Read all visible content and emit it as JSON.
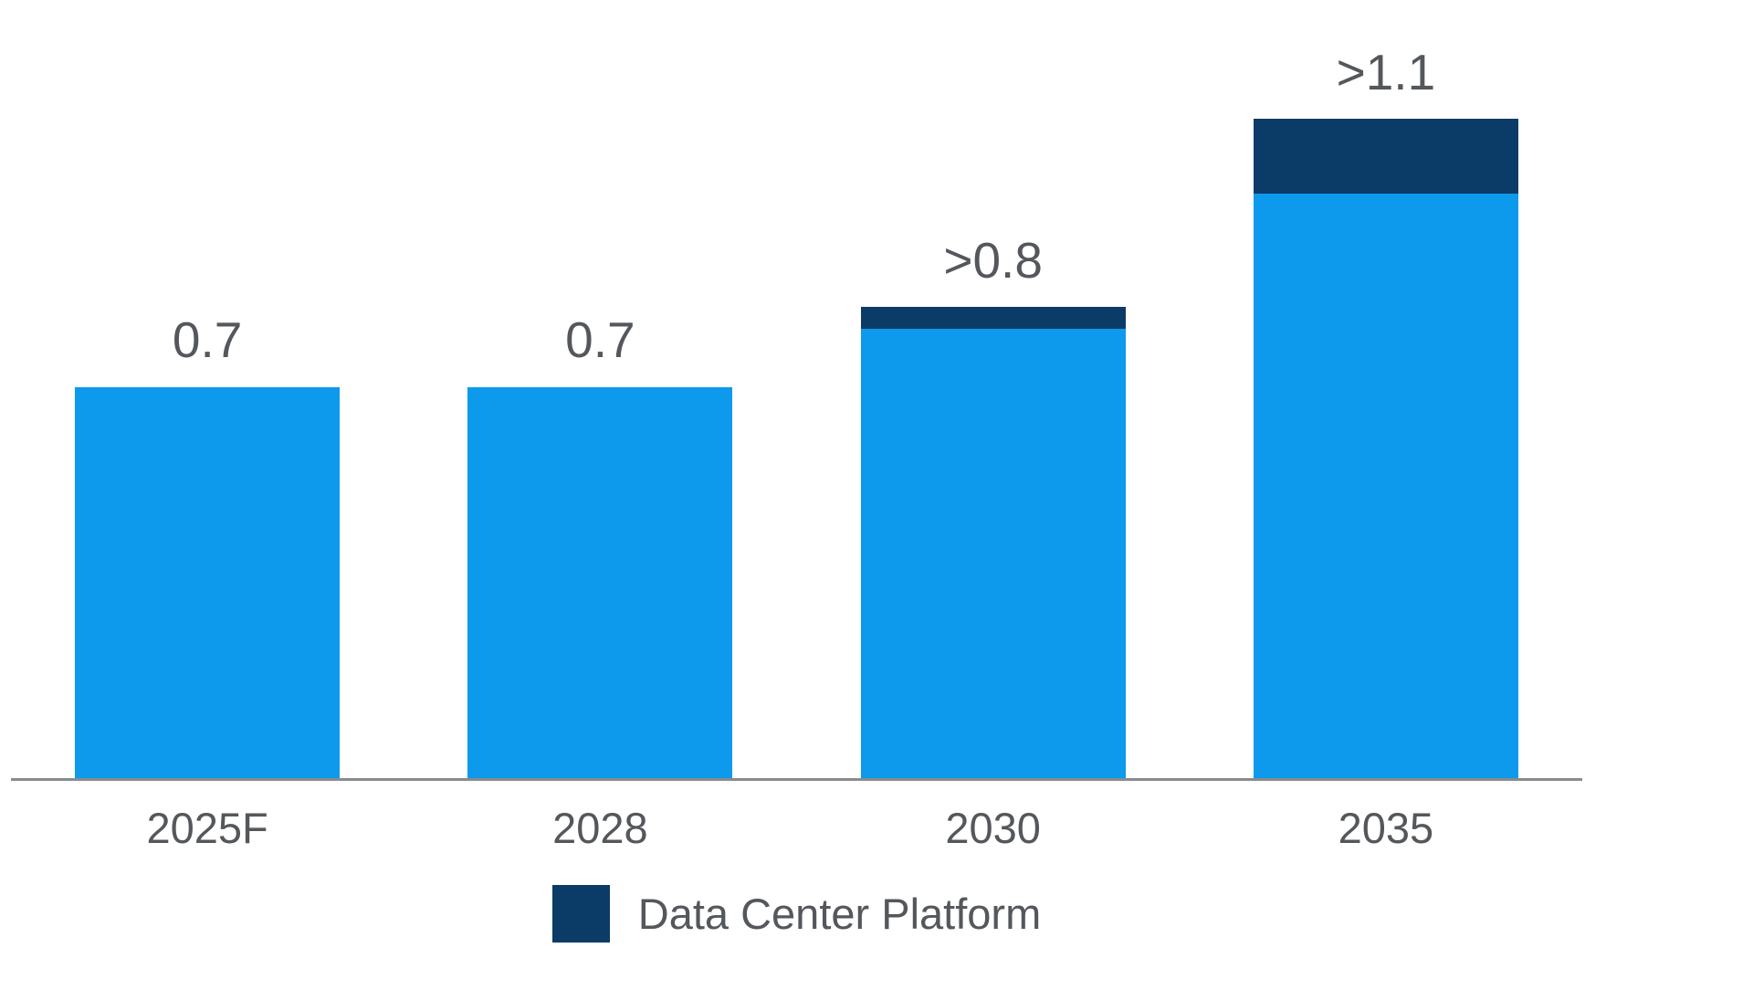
{
  "chart_data": {
    "type": "bar",
    "stacked": true,
    "title": "",
    "categories": [
      "2025F",
      "2028",
      "2030",
      "2035"
    ],
    "series": [
      {
        "name": "",
        "color": "#0D9AEC",
        "values": [
          0.7,
          0.7,
          0.805,
          1.045
        ]
      },
      {
        "name": "Data Center Platform",
        "color": "#0B3B67",
        "values": [
          0,
          0,
          0.038,
          0.134
        ]
      }
    ],
    "total_labels": [
      "0.7",
      "0.7",
      ">0.8",
      ">1.1"
    ],
    "ylim": [
      0,
      1.25
    ],
    "grid": false,
    "y_axis_shown": false,
    "axis_line_color": "#898B8E",
    "label_color": "#54575B",
    "legend_position": "bottom-center",
    "legend": [
      {
        "label": "Data Center Platform",
        "color": "#0B3B67"
      }
    ]
  }
}
